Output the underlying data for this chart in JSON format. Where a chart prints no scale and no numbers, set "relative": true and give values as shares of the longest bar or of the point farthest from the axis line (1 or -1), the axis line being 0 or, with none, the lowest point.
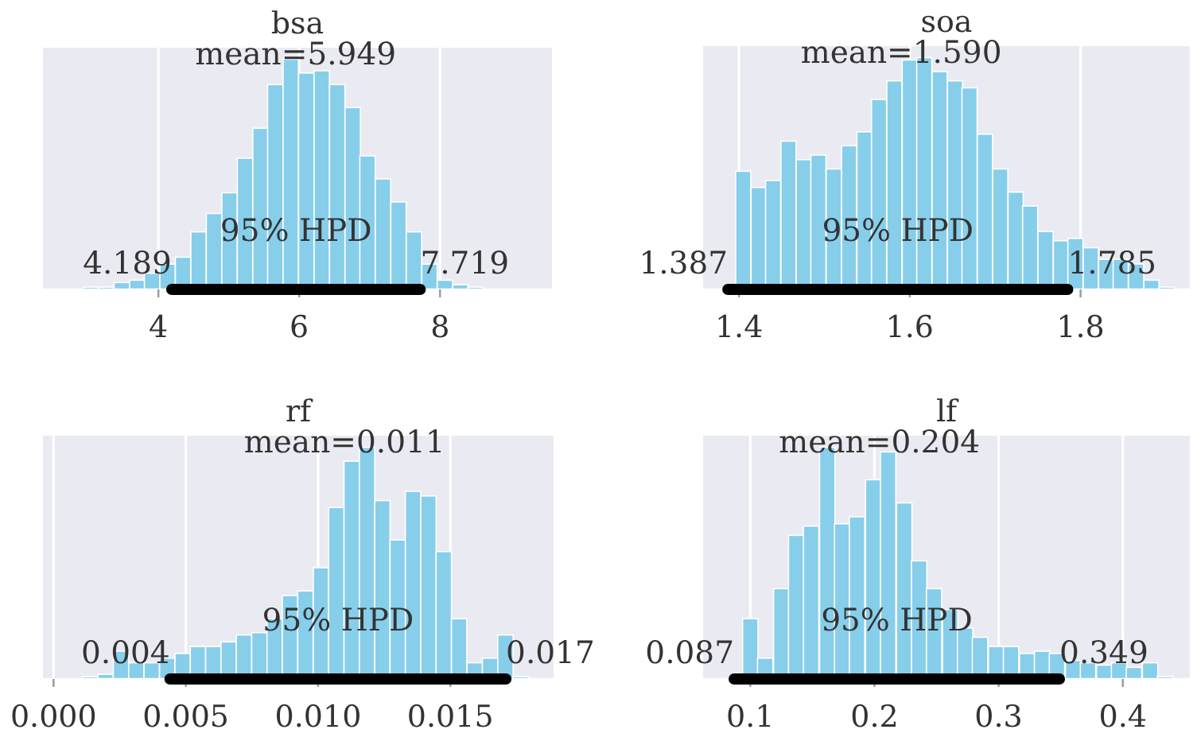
{
  "chart_data": [
    {
      "type": "bar",
      "title": "bsa",
      "relative": true,
      "grid": "x",
      "xlim": [
        2.36,
        9.59
      ],
      "xticks": [
        4,
        6,
        8
      ],
      "series": [
        {
          "x": [
            3.04,
            3.26,
            3.48,
            3.7,
            3.91,
            4.13,
            4.35,
            4.57,
            4.79,
            5.01,
            5.23,
            5.45,
            5.66,
            5.88,
            6.1,
            6.32,
            6.54,
            6.76,
            6.97,
            7.19,
            7.41,
            7.63,
            7.85,
            8.07,
            8.29,
            8.5
          ],
          "values": [
            0.01,
            0.01,
            0.03,
            0.04,
            0.07,
            0.11,
            0.14,
            0.25,
            0.33,
            0.42,
            0.57,
            0.7,
            0.89,
            1,
            0.94,
            0.95,
            0.89,
            0.79,
            0.58,
            0.48,
            0.38,
            0.25,
            0.11,
            0.04,
            0.02,
            0.01
          ],
          "color": "#87ceeb"
        },
        {
          "type": "line",
          "name": "95% HPD",
          "x": [
            4.189,
            7.719
          ],
          "values": [
            0,
            0
          ],
          "color": "#000000"
        }
      ],
      "annotations": [
        {
          "text": "mean=5.949",
          "x": 5.949,
          "y": 0.91
        },
        {
          "text": "4.189",
          "x": 4.189,
          "y": 0
        },
        {
          "text": "7.719",
          "x": 7.719,
          "y": 0
        }
      ]
    },
    {
      "type": "bar",
      "title": "soa",
      "relative": true,
      "grid": "x",
      "xlim": [
        1.358,
        1.928
      ],
      "xticks": [
        1.4,
        1.6,
        1.8
      ],
      "series": [
        {
          "x": [
            1.405,
            1.423,
            1.44,
            1.458,
            1.476,
            1.493,
            1.511,
            1.529,
            1.547,
            1.564,
            1.582,
            1.6,
            1.617,
            1.635,
            1.653,
            1.67,
            1.688,
            1.706,
            1.724,
            1.741,
            1.759,
            1.777,
            1.794,
            1.812,
            1.83,
            1.847,
            1.865,
            1.883,
            1.901
          ],
          "values": [
            0.51,
            0.44,
            0.47,
            0.64,
            0.56,
            0.58,
            0.52,
            0.62,
            0.68,
            0.82,
            0.9,
            0.99,
            1,
            0.94,
            0.9,
            0.87,
            0.67,
            0.52,
            0.42,
            0.36,
            0.25,
            0.21,
            0.22,
            0.18,
            0.13,
            0.13,
            0.11,
            0.04,
            0.01
          ],
          "color": "#87ceeb"
        },
        {
          "type": "line",
          "name": "95% HPD",
          "x": [
            1.387,
            1.785
          ],
          "values": [
            0,
            0
          ],
          "color": "#000000"
        }
      ],
      "annotations": [
        {
          "text": "mean=1.590",
          "x": 1.59,
          "y": 0.91
        },
        {
          "text": "1.387",
          "x": 1.387,
          "y": 0
        },
        {
          "text": "1.785",
          "x": 1.785,
          "y": 0
        }
      ]
    },
    {
      "type": "bar",
      "title": "rf",
      "relative": true,
      "grid": "x",
      "xlim": [
        -0.0004,
        0.0189
      ],
      "xticks": [
        {
          "value": 0,
          "label": "0.000"
        },
        {
          "value": 0.005,
          "label": "0.005"
        },
        {
          "value": 0.01,
          "label": "0.010"
        },
        {
          "value": 0.015,
          "label": "0.015"
        }
      ],
      "series": [
        {
          "x": [
            0.00139,
            0.00197,
            0.00255,
            0.00313,
            0.00371,
            0.0043,
            0.00488,
            0.00546,
            0.00604,
            0.00662,
            0.0072,
            0.00778,
            0.00836,
            0.00894,
            0.00952,
            0.01011,
            0.01069,
            0.01127,
            0.01185,
            0.01243,
            0.01301,
            0.01359,
            0.01417,
            0.01475,
            0.01533,
            0.01592,
            0.0165,
            0.01708,
            0.01766
          ],
          "values": [
            0.01,
            0.02,
            0.12,
            0.07,
            0.07,
            0.09,
            0.11,
            0.14,
            0.14,
            0.16,
            0.19,
            0.2,
            0.26,
            0.36,
            0.38,
            0.48,
            0.74,
            0.94,
            1,
            0.77,
            0.6,
            0.81,
            0.79,
            0.55,
            0.26,
            0.07,
            0.09,
            0.19,
            0.01
          ],
          "color": "#87ceeb"
        },
        {
          "type": "line",
          "name": "95% HPD",
          "x": [
            0.0044,
            0.0171
          ],
          "values": [
            0,
            0
          ],
          "color": "#000000"
        }
      ],
      "annotations": [
        {
          "text": "mean=0.011",
          "x": 0.011,
          "y": 0.91
        },
        {
          "text": "0.004",
          "x": 0.0044,
          "y": 0
        },
        {
          "text": "0.017",
          "x": 0.0171,
          "y": 0
        }
      ]
    },
    {
      "type": "bar",
      "title": "lf",
      "relative": true,
      "grid": "x",
      "xlim": [
        0.062,
        0.454
      ],
      "xticks": [
        0.1,
        0.2,
        0.3,
        0.4
      ],
      "series": [
        {
          "x": [
            0.1,
            0.112,
            0.125,
            0.137,
            0.149,
            0.162,
            0.174,
            0.186,
            0.199,
            0.211,
            0.224,
            0.236,
            0.248,
            0.261,
            0.273,
            0.285,
            0.298,
            0.31,
            0.323,
            0.335,
            0.347,
            0.36,
            0.372,
            0.385,
            0.397,
            0.409,
            0.422,
            0.434
          ],
          "values": [
            0.26,
            0.09,
            0.39,
            0.62,
            0.66,
            1,
            0.67,
            0.7,
            0.86,
            0.98,
            0.76,
            0.51,
            0.39,
            0.3,
            0.22,
            0.18,
            0.14,
            0.14,
            0.11,
            0.12,
            0.11,
            0.08,
            0.07,
            0.06,
            0.07,
            0.05,
            0.07,
            0.01
          ],
          "color": "#87ceeb"
        },
        {
          "type": "line",
          "name": "95% HPD",
          "x": [
            0.087,
            0.349
          ],
          "values": [
            0,
            0
          ],
          "color": "#000000"
        }
      ],
      "annotations": [
        {
          "text": "mean=0.204",
          "x": 0.204,
          "y": 0.91
        },
        {
          "text": "0.087",
          "x": 0.087,
          "y": 0
        },
        {
          "text": "0.349",
          "x": 0.349,
          "y": 0
        }
      ]
    }
  ]
}
